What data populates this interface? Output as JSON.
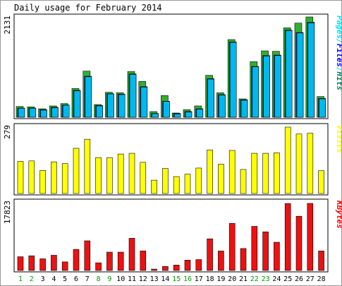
{
  "title": "Daily usage for February 2014",
  "colors": {
    "hits": "#00805c",
    "files": "#0000ff",
    "pages": "#00e0ff",
    "visits": "#ffff00",
    "kbytes": "#ff0000",
    "weekend_label": "#00a000"
  },
  "chart_data": [
    {
      "type": "bar",
      "panel": "pages-files-hits",
      "categories": [
        "1",
        "2",
        "3",
        "4",
        "5",
        "6",
        "7",
        "8",
        "9",
        "10",
        "11",
        "12",
        "13",
        "14",
        "15",
        "16",
        "17",
        "18",
        "19",
        "20",
        "21",
        "22",
        "23",
        "24",
        "25",
        "26",
        "27",
        "28"
      ],
      "ylabel": "Pages/Files/Hits",
      "max_label": "2131",
      "ylim": [
        0,
        2131
      ],
      "series": [
        {
          "name": "Hits",
          "values": [
            228,
            220,
            180,
            240,
            290,
            610,
            980,
            270,
            530,
            520,
            970,
            760,
            120,
            460,
            90,
            160,
            240,
            890,
            520,
            1650,
            390,
            1180,
            1410,
            1400,
            1900,
            2000,
            2131,
            440
          ]
        },
        {
          "name": "Files",
          "values": [
            195,
            195,
            160,
            210,
            260,
            570,
            870,
            250,
            500,
            490,
            920,
            650,
            80,
            340,
            80,
            120,
            180,
            820,
            480,
            1600,
            370,
            1080,
            1310,
            1320,
            1850,
            1800,
            2020,
            400
          ]
        },
        {
          "name": "Pages",
          "values": [
            190,
            190,
            150,
            200,
            255,
            560,
            860,
            240,
            495,
            480,
            910,
            640,
            75,
            335,
            70,
            110,
            170,
            810,
            470,
            1590,
            360,
            1070,
            1300,
            1310,
            1840,
            1790,
            2000,
            390
          ]
        }
      ]
    },
    {
      "type": "bar",
      "panel": "visits",
      "categories": [
        "1",
        "2",
        "3",
        "4",
        "5",
        "6",
        "7",
        "8",
        "9",
        "10",
        "11",
        "12",
        "13",
        "14",
        "15",
        "16",
        "17",
        "18",
        "19",
        "20",
        "21",
        "22",
        "23",
        "24",
        "25",
        "26",
        "27",
        "28"
      ],
      "ylabel": "Visits",
      "max_label": "279",
      "ylim": [
        0,
        279
      ],
      "series": [
        {
          "name": "Visits",
          "values": [
            135,
            137,
            97,
            133,
            126,
            190,
            228,
            151,
            151,
            166,
            169,
            131,
            56,
            105,
            71,
            81,
            107,
            183,
            123,
            181,
            101,
            169,
            169,
            171,
            279,
            250,
            253,
            96
          ]
        }
      ]
    },
    {
      "type": "bar",
      "panel": "kbytes",
      "categories": [
        "1",
        "2",
        "3",
        "4",
        "5",
        "6",
        "7",
        "8",
        "9",
        "10",
        "11",
        "12",
        "13",
        "14",
        "15",
        "16",
        "17",
        "18",
        "19",
        "20",
        "21",
        "22",
        "23",
        "24",
        "25",
        "26",
        "27",
        "28"
      ],
      "ylabel": "KBytes",
      "max_label": "17823",
      "ylim": [
        0,
        17823
      ],
      "series": [
        {
          "name": "KBytes",
          "values": [
            3650,
            3900,
            3100,
            4040,
            2280,
            5610,
            7880,
            2040,
            4870,
            4870,
            8560,
            5190,
            360,
            1060,
            1440,
            2750,
            2900,
            8410,
            5170,
            12500,
            5830,
            11720,
            10260,
            7500,
            17780,
            14400,
            17823,
            5180
          ]
        }
      ]
    }
  ],
  "weekend_days": [
    "1",
    "2",
    "8",
    "9",
    "15",
    "16",
    "22",
    "23"
  ]
}
